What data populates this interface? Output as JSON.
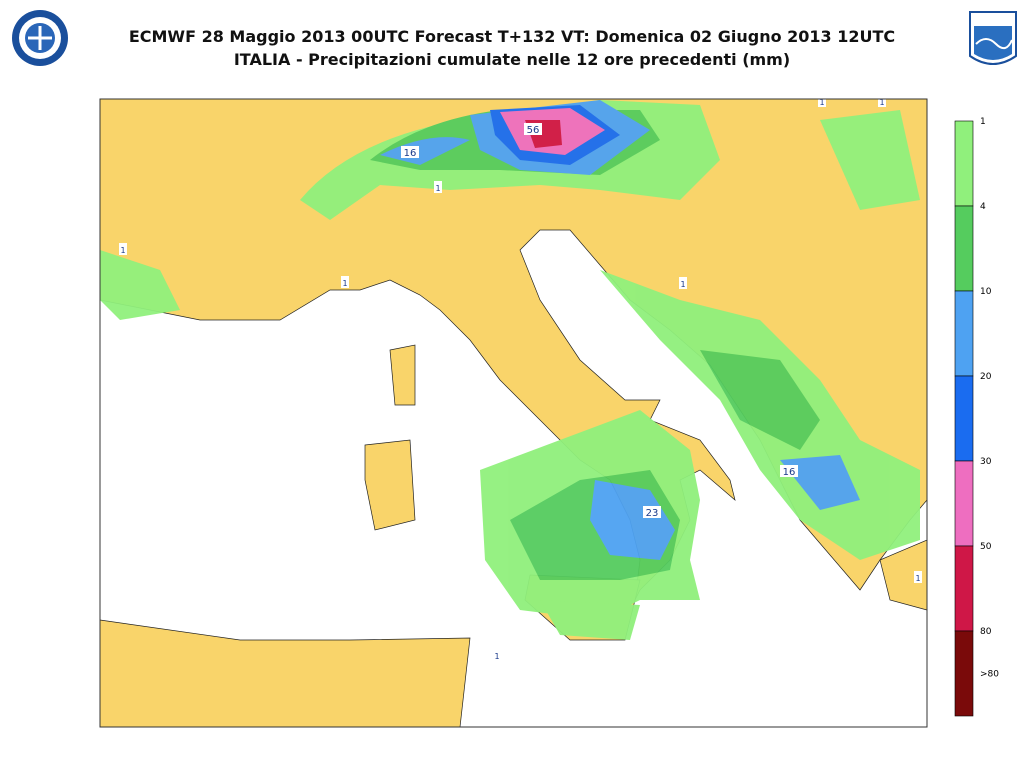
{
  "header": {
    "title": "ECMWF 28 Maggio 2013 00UTC Forecast T+132 VT: Domenica 02 Giugno 2013 12UTC",
    "subtitle": "ITALIA - Precipitazioni cumulate nelle 12 ore precedenti (mm)"
  },
  "map": {
    "labels": [
      "56",
      "16",
      "23",
      "16",
      "1",
      "1",
      "1",
      "1",
      "1",
      "1",
      "1",
      "1"
    ]
  },
  "legend": {
    "labels": [
      "1",
      "4",
      "10",
      "20",
      "30",
      "50",
      "80",
      ">80"
    ],
    "colors": [
      "#90f07c",
      "#55cc5e",
      "#4ea2f2",
      "#1a6cf0",
      "#ee6ec0",
      "#cf1747",
      "#7a0a0a"
    ]
  }
}
